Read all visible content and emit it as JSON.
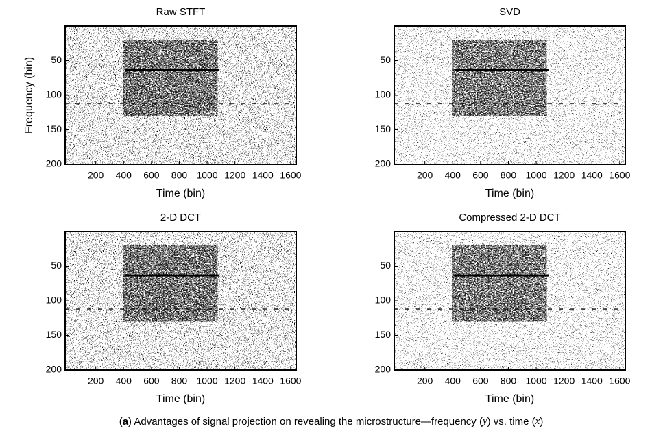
{
  "chart_data": [
    {
      "type": "heatmap",
      "title": "Raw STFT",
      "x_label": "Time (bin)",
      "y_label": "Frequency (bin)",
      "xlim": [
        -20,
        1640
      ],
      "xticks": [
        200,
        400,
        600,
        800,
        1000,
        1200,
        1400,
        1600
      ],
      "ylim": [
        0,
        200
      ],
      "yticks": [
        50,
        100,
        150,
        200
      ],
      "y_inverted": true,
      "color": "#000000"
    },
    {
      "type": "heatmap",
      "title": "SVD",
      "x_label": "Time (bin)",
      "xlim": [
        -20,
        1640
      ],
      "xticks": [
        200,
        400,
        600,
        800,
        1000,
        1200,
        1400,
        1600
      ],
      "ylim": [
        0,
        200
      ],
      "yticks": [
        50,
        100,
        150,
        200
      ],
      "y_inverted": true,
      "color": "#000000"
    },
    {
      "type": "heatmap",
      "title": "2-D DCT",
      "x_label": "Time (bin)",
      "xlim": [
        -20,
        1640
      ],
      "xticks": [
        200,
        400,
        600,
        800,
        1000,
        1200,
        1400,
        1600
      ],
      "ylim": [
        0,
        200
      ],
      "yticks": [
        50,
        100,
        150,
        200
      ],
      "y_inverted": true,
      "color": "#000000"
    },
    {
      "type": "heatmap",
      "title": "Compressed 2-D DCT",
      "x_label": "Time (bin)",
      "xlim": [
        -20,
        1640
      ],
      "xticks": [
        200,
        400,
        600,
        800,
        1000,
        1200,
        1400,
        1600
      ],
      "ylim": [
        0,
        200
      ],
      "yticks": [
        50,
        100,
        150,
        200
      ],
      "y_inverted": true,
      "color": "#000000"
    }
  ],
  "caption": [
    "(",
    "a",
    ") Advantages of signal projection on revealing the microstructure—frequency (",
    "y",
    ") vs. time (",
    "x",
    ")"
  ]
}
